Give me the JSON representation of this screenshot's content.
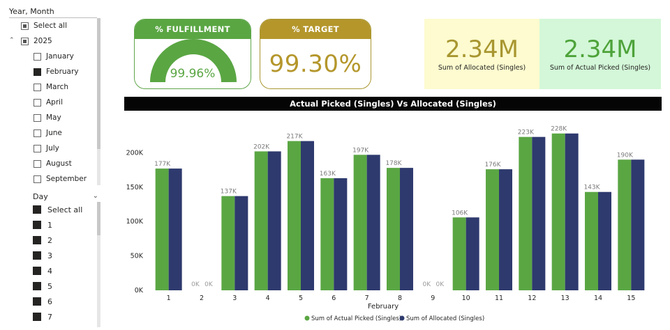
{
  "slicer": {
    "title": "Year, Month",
    "select_all": "Select all",
    "year": "2025",
    "months": [
      {
        "label": "January",
        "checked": false
      },
      {
        "label": "February",
        "checked": true
      },
      {
        "label": "March",
        "checked": false
      },
      {
        "label": "April",
        "checked": false
      },
      {
        "label": "May",
        "checked": false
      },
      {
        "label": "June",
        "checked": false
      },
      {
        "label": "July",
        "checked": false
      },
      {
        "label": "August",
        "checked": false
      },
      {
        "label": "September",
        "checked": false
      }
    ]
  },
  "day_slicer": {
    "title": "Day",
    "items": [
      "Select all",
      "1",
      "2",
      "3",
      "4",
      "5",
      "6",
      "7"
    ]
  },
  "kpi": {
    "fulfillment": {
      "label": "% FULFILLMENT",
      "value": "99.96%",
      "fraction": 0.9996
    },
    "target": {
      "label": "% TARGET",
      "value": "99.30%"
    },
    "allocated": {
      "value": "2.34M",
      "label": "Sum of Allocated (Singles)"
    },
    "picked": {
      "value": "2.34M",
      "label": "Sum of Actual Picked (Singles)"
    }
  },
  "chart_title": "Actual Picked (Singles) Vs Allocated (Singles)",
  "chart_data": {
    "type": "bar",
    "title": "Actual Picked (Singles) Vs Allocated (Singles)",
    "xlabel": "February",
    "ylabel": "",
    "categories": [
      "1",
      "2",
      "3",
      "4",
      "5",
      "6",
      "7",
      "8",
      "9",
      "10",
      "11",
      "12",
      "13",
      "14",
      "15"
    ],
    "series": [
      {
        "name": "Sum of Actual Picked (Singles)",
        "color": "#5aa643",
        "values": [
          177000,
          0,
          137000,
          202000,
          217000,
          163000,
          197000,
          178000,
          0,
          106000,
          176000,
          223000,
          228000,
          143000,
          190000
        ]
      },
      {
        "name": "Sum of Allocated (Singles)",
        "color": "#2e3a6e",
        "values": [
          177000,
          0,
          137000,
          202000,
          217000,
          163000,
          197000,
          178000,
          0,
          106000,
          176000,
          223000,
          228000,
          143000,
          190000
        ]
      }
    ],
    "data_labels": [
      "177K",
      "0K",
      "137K",
      "202K",
      "217K",
      "163K",
      "197K",
      "178K",
      "0K",
      "106K",
      "176K",
      "223K",
      "228K",
      "143K",
      "190K"
    ],
    "ylim": [
      0,
      250000
    ],
    "yticks": [
      0,
      50000,
      100000,
      150000,
      200000
    ],
    "ytick_labels": [
      "0K",
      "50K",
      "100K",
      "150K",
      "200K"
    ],
    "grid": false,
    "legend": "bottom-center"
  }
}
